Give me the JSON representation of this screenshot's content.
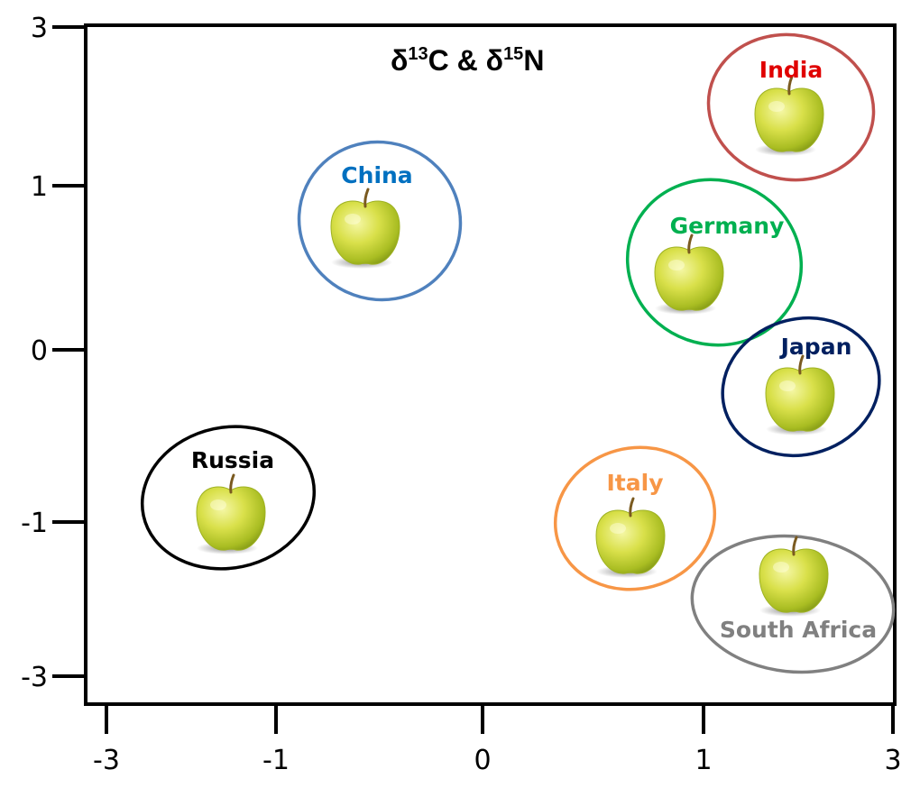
{
  "chart_data": {
    "type": "scatter",
    "title": {
      "delta": "δ",
      "n13": "13",
      "c": "C & ",
      "delta2": "δ",
      "n15": "15",
      "n": "N"
    },
    "xlabel": "",
    "ylabel": "",
    "x_ticks": [
      "-3",
      "-1",
      "0",
      "1",
      "3"
    ],
    "y_ticks": [
      "3",
      "1",
      "0",
      "-1",
      "-3"
    ],
    "clusters": [
      {
        "name": "India",
        "color": "#e00000",
        "ring": "#c0504d",
        "x": 2.0,
        "y": 2.0,
        "icon": "apple-icon"
      },
      {
        "name": "China",
        "color": "#0070c0",
        "ring": "#4f81bd",
        "x": -0.55,
        "y": 0.75,
        "icon": "apple-icon"
      },
      {
        "name": "Germany",
        "color": "#00b050",
        "ring": "#00b050",
        "x": 1.05,
        "y": 0.5,
        "icon": "apple-icon"
      },
      {
        "name": "Japan",
        "color": "#002060",
        "ring": "#002060",
        "x": 2.0,
        "y": -0.25,
        "icon": "apple-icon"
      },
      {
        "name": "Russia",
        "color": "#000000",
        "ring": "#000000",
        "x": -1.9,
        "y": -0.95,
        "icon": "apple-icon"
      },
      {
        "name": "Italy",
        "color": "#f79646",
        "ring": "#f79646",
        "x": 0.7,
        "y": -1.0,
        "icon": "apple-icon"
      },
      {
        "name": "South Africa",
        "color": "#808080",
        "ring": "#808080",
        "x": 2.0,
        "y": -1.5,
        "icon": "apple-icon"
      }
    ]
  }
}
